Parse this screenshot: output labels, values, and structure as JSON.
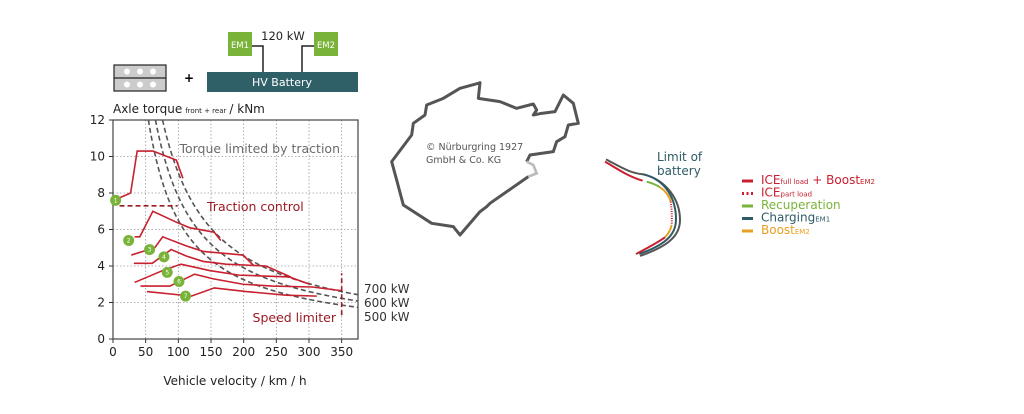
{
  "diagram": {
    "power_label": "120 kW",
    "em1": "EM1",
    "em2": "EM2",
    "battery": "HV Battery",
    "plus": "+"
  },
  "track": {
    "copyright_line1": "© Nürburgring 1927",
    "copyright_line2": "GmbH & Co. KG"
  },
  "legend": {
    "limit_line1": "Limit of",
    "limit_line2": "battery",
    "items": [
      {
        "main": "ICE",
        "sub": "full load",
        "main2": " + Boost",
        "sub2": "EM2",
        "color": "#c8202f",
        "style": "solid"
      },
      {
        "main": "ICE",
        "sub": "part load",
        "color": "#c8202f",
        "style": "dotted"
      },
      {
        "main": "Recuperation",
        "color": "#7ab33a",
        "style": "solid"
      },
      {
        "main": "Charging",
        "sub": "EM1",
        "color": "#2f5b66",
        "style": "solid"
      },
      {
        "main": "Boost",
        "sub": "EM2",
        "color": "#e9a022",
        "style": "solid"
      }
    ]
  },
  "colors": {
    "red": "#c8202f",
    "green": "#7ab33a",
    "teal": "#2f5b66",
    "orange": "#e9a022",
    "gray": "#555555"
  },
  "chart_data": {
    "type": "line",
    "ylabel": "Axle torque",
    "ylabel_sub": "front + rear",
    "ylabel_unit": "/ kNm",
    "xlabel": "Vehicle velocity / km / h",
    "xlim": [
      0,
      375
    ],
    "ylim": [
      0,
      12
    ],
    "xticks": [
      0,
      50,
      100,
      150,
      200,
      250,
      300,
      350
    ],
    "yticks": [
      0,
      2,
      4,
      6,
      8,
      10,
      12
    ],
    "grid": true,
    "gears": [
      {
        "name": "1",
        "badge": [
          4,
          7.6
        ],
        "points": [
          [
            7.6,
            7.7
          ],
          [
            27,
            8.0
          ],
          [
            37,
            10.3
          ],
          [
            61,
            10.3
          ],
          [
            97,
            9.8
          ],
          [
            107,
            8.8
          ]
        ]
      },
      {
        "name": "2",
        "badge": [
          24,
          5.4
        ],
        "points": [
          [
            33,
            5.6
          ],
          [
            41,
            5.6
          ],
          [
            61,
            7.0
          ],
          [
            97,
            6.4
          ],
          [
            117,
            6.1
          ],
          [
            155,
            5.85
          ],
          [
            165,
            5.4
          ]
        ]
      },
      {
        "name": "3",
        "badge": [
          56,
          4.9
        ],
        "points": [
          [
            28,
            4.6
          ],
          [
            64,
            5.0
          ],
          [
            76,
            5.6
          ],
          [
            112,
            5.1
          ],
          [
            138,
            4.8
          ],
          [
            168,
            4.7
          ],
          [
            199,
            4.6
          ],
          [
            216,
            4.0
          ]
        ]
      },
      {
        "name": "4",
        "badge": [
          78,
          4.5
        ],
        "points": [
          [
            32,
            4.15
          ],
          [
            60,
            4.15
          ],
          [
            89,
            4.9
          ],
          [
            112,
            4.55
          ],
          [
            138,
            4.25
          ],
          [
            173,
            4.1
          ],
          [
            234,
            4.0
          ],
          [
            272,
            3.4
          ]
        ]
      },
      {
        "name": "5",
        "badge": [
          83,
          3.65
        ],
        "points": [
          [
            33,
            3.1
          ],
          [
            76,
            3.75
          ],
          [
            104,
            4.1
          ],
          [
            148,
            3.75
          ],
          [
            193,
            3.5
          ],
          [
            270,
            3.4
          ],
          [
            301,
            3.0
          ]
        ]
      },
      {
        "name": "6",
        "badge": [
          101,
          3.15
        ],
        "points": [
          [
            42,
            2.9
          ],
          [
            87,
            2.9
          ],
          [
            125,
            3.55
          ],
          [
            153,
            3.3
          ],
          [
            199,
            3.0
          ],
          [
            244,
            2.9
          ],
          [
            305,
            2.85
          ],
          [
            349,
            2.65
          ]
        ]
      },
      {
        "name": "7",
        "badge": [
          111,
          2.35
        ],
        "points": [
          [
            52,
            2.6
          ],
          [
            120,
            2.35
          ],
          [
            155,
            2.8
          ],
          [
            204,
            2.6
          ],
          [
            265,
            2.4
          ],
          [
            312,
            2.35
          ]
        ]
      }
    ],
    "traction_control": {
      "label": "Traction control",
      "x": [
        10,
        99
      ],
      "y": 7.3
    },
    "speed_limiter": {
      "label": "Speed limiter",
      "x": 350,
      "y": [
        1.3,
        3.6
      ]
    },
    "torque_limit_label": "Torque limited by traction",
    "power_curves": [
      {
        "label": "700 kW",
        "kw": 700
      },
      {
        "label": "600 kW",
        "kw": 600
      },
      {
        "label": "500 kW",
        "kw": 500
      }
    ],
    "power_constant": 1.3
  }
}
